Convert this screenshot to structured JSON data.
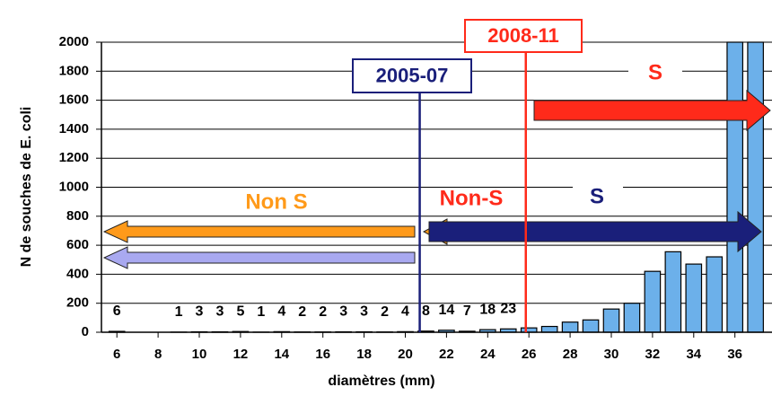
{
  "chart_data": {
    "type": "bar",
    "x_label": "diamètres (mm)",
    "y_label": "N de souches de E. coli",
    "x": [
      6,
      7,
      8,
      9,
      10,
      11,
      12,
      13,
      14,
      15,
      16,
      17,
      18,
      19,
      20,
      21,
      22,
      23,
      24,
      25,
      26,
      27,
      28,
      29,
      30,
      31,
      32,
      33,
      34,
      35,
      36,
      37
    ],
    "values": [
      6,
      null,
      null,
      1,
      3,
      3,
      5,
      1,
      4,
      2,
      2,
      3,
      3,
      2,
      4,
      8,
      14,
      7,
      18,
      23,
      30,
      40,
      70,
      85,
      160,
      200,
      420,
      555,
      470,
      520,
      2000,
      2000
    ],
    "value_labels": [
      "6",
      null,
      null,
      "1",
      "3",
      "3",
      "5",
      "1",
      "4",
      "2",
      "2",
      "3",
      "3",
      "2",
      "4",
      "8",
      "14",
      "7",
      "18",
      "23",
      null,
      null,
      null,
      null,
      null,
      null,
      null,
      null,
      null,
      null,
      null,
      null
    ],
    "color": "#6cb0ea",
    "xlim": [
      5.25,
      37.8
    ],
    "xticks": [
      6,
      8,
      10,
      12,
      14,
      16,
      18,
      20,
      22,
      24,
      26,
      28,
      30,
      32,
      34,
      36
    ],
    "ylim": [
      0,
      2000
    ],
    "yticks": [
      0,
      200,
      400,
      600,
      800,
      1000,
      1200,
      1400,
      1600,
      1800,
      2000
    ],
    "grid": true,
    "markers": [
      {
        "label": "2005-07",
        "x": 20.7,
        "color": "#1a1f7a"
      },
      {
        "label": "2008-11",
        "x": 25.85,
        "color": "#ff2a1a"
      }
    ],
    "annotations": [
      "Non S",
      "Non-S",
      "S",
      "S"
    ]
  }
}
